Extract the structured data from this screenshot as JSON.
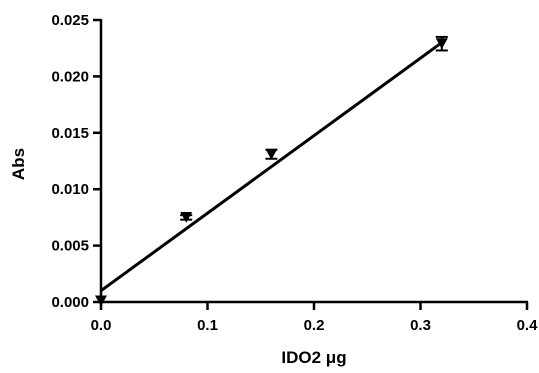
{
  "chart_data": {
    "type": "scatter",
    "title": "",
    "xlabel": "IDO2 μg",
    "ylabel": "Abs",
    "xlim": [
      0,
      0.4
    ],
    "ylim": [
      0,
      0.025
    ],
    "x_ticks": [
      "0.0",
      "0.1",
      "0.2",
      "0.3",
      "0.4"
    ],
    "y_ticks": [
      "0.000",
      "0.005",
      "0.010",
      "0.015",
      "0.020",
      "0.025"
    ],
    "grid": false,
    "legend": "none",
    "marker": "down-triangle",
    "color": "#000000",
    "series": [
      {
        "x": [
          0.0,
          0.08,
          0.16,
          0.32
        ],
        "y": [
          0.0001,
          0.0075,
          0.0131,
          0.0229
        ],
        "error": [
          0.0,
          0.0002,
          0.0004,
          0.0006
        ]
      }
    ],
    "fit_line": {
      "x": [
        0.0,
        0.32
      ],
      "y": [
        0.001,
        0.023
      ]
    }
  }
}
